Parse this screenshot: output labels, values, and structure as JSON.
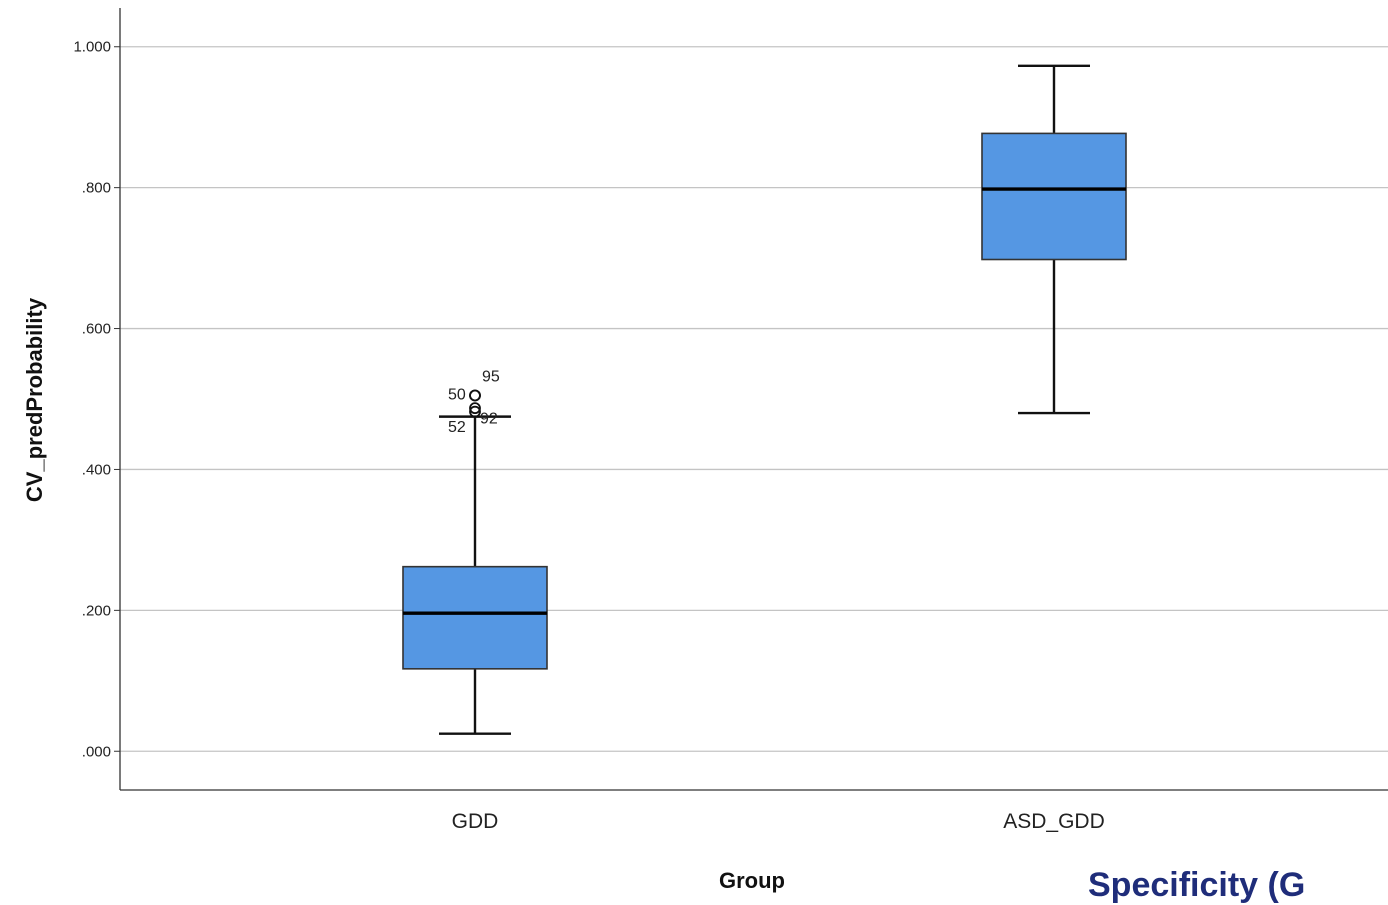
{
  "chart_data": {
    "type": "box",
    "xlabel": "Group",
    "ylabel": "CV_predProbability",
    "ylim": [
      -0.055,
      1.055
    ],
    "yticks": [
      0.0,
      0.2,
      0.4,
      0.6,
      0.8,
      1.0
    ],
    "ytick_labels": [
      ".000",
      ".200",
      ".400",
      ".600",
      ".800",
      "1.000"
    ],
    "grid": true,
    "box_color": "#5597e3",
    "categories": [
      "GDD",
      "ASD_GDD"
    ],
    "boxes": [
      {
        "category": "GDD",
        "whisker_low": 0.025,
        "q1": 0.117,
        "median": 0.196,
        "q3": 0.262,
        "whisker_high": 0.475,
        "outliers": [
          {
            "label": "50",
            "value": 0.505
          },
          {
            "label": "95",
            "value": 0.505
          },
          {
            "label": "52",
            "value": 0.487
          },
          {
            "label": "92",
            "value": 0.482
          }
        ]
      },
      {
        "category": "ASD_GDD",
        "whisker_low": 0.48,
        "q1": 0.698,
        "median": 0.798,
        "q3": 0.877,
        "whisker_high": 0.973,
        "outliers": []
      }
    ]
  },
  "overlay_text": "Specificity (G"
}
